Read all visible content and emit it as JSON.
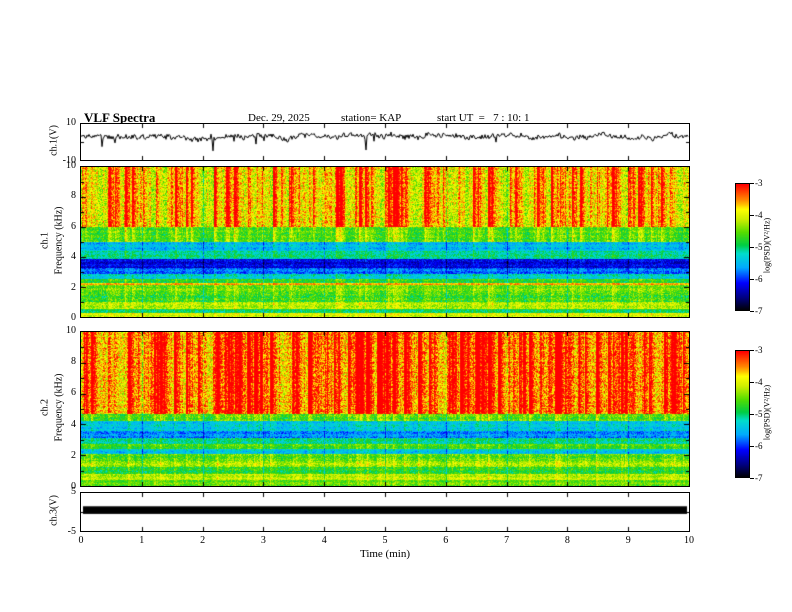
{
  "header": {
    "title": "VLF Spectra",
    "date": "Dec. 29, 2025",
    "station": "station= KAP",
    "start_ut": "start UT  =   7 : 10: 1"
  },
  "axes": {
    "x": {
      "label": "Time (min)",
      "ticks": [
        0,
        1,
        2,
        3,
        4,
        5,
        6,
        7,
        8,
        9,
        10
      ],
      "range": [
        0,
        10
      ]
    },
    "waveform_y": {
      "label": "ch.1(V)",
      "ticks": [
        10,
        -10
      ],
      "range": [
        -10,
        10
      ]
    },
    "spec1_y": {
      "label_line1": "ch.1",
      "label_line2": "Frequency (kHz)",
      "ticks": [
        10,
        8,
        6,
        4,
        2,
        0
      ],
      "range": [
        0,
        10
      ]
    },
    "spec2_y": {
      "label_line1": "ch.2",
      "label_line2": "Frequency (kHz)",
      "ticks": [
        10,
        8,
        6,
        4,
        2,
        0
      ],
      "range": [
        0,
        10
      ]
    },
    "ch3_y": {
      "label": "ch.3(V)",
      "ticks": [
        5,
        -5
      ],
      "range": [
        -5,
        5
      ]
    },
    "colorbar": {
      "label": "log(PSD)(V²/Hz)",
      "ticks": [
        -3,
        -4,
        -5,
        -6,
        -7
      ],
      "range": [
        -7,
        -3
      ]
    }
  },
  "chart_data": [
    {
      "type": "line",
      "panel": "ch1-waveform",
      "ylabel": "ch.1(V)",
      "ylim": [
        -10,
        10
      ],
      "xlim": [
        0,
        10
      ],
      "mean_level": 3,
      "noise_amplitude": 2.4,
      "spike_depth": -6,
      "color": "#000000",
      "description": "dense noisy voltage trace hovering near +3 V with occasional downward spikes"
    },
    {
      "type": "heatmap",
      "panel": "ch1-spectrogram",
      "ylabel": "Frequency (kHz)",
      "ylim": [
        0,
        10
      ],
      "xlim": [
        0,
        10
      ],
      "clim": [
        -7,
        -3
      ],
      "colormap": "rainbow",
      "bands": [
        {
          "f": [
            6.0,
            10.01
          ],
          "level": -4.3,
          "noise": 0.5,
          "streak": 1.6
        },
        {
          "f": [
            5.0,
            6.0
          ],
          "level": -4.8,
          "noise": 0.35,
          "streak": 0.7
        },
        {
          "f": [
            4.4,
            5.0
          ],
          "level": -5.6,
          "noise": 0.3,
          "streak": 0.3
        },
        {
          "f": [
            3.9,
            4.4
          ],
          "level": -5.2,
          "noise": 0.3,
          "streak": 0.3
        },
        {
          "f": [
            3.3,
            3.9
          ],
          "level": -6.3,
          "noise": 0.3,
          "streak": 0.15
        },
        {
          "f": [
            2.9,
            3.3
          ],
          "level": -5.9,
          "noise": 0.3,
          "streak": 0.2
        },
        {
          "f": [
            2.55,
            2.9
          ],
          "level": -5.4,
          "noise": 0.3,
          "streak": 0.3
        },
        {
          "f": [
            2.3,
            2.55
          ],
          "level": -4.9,
          "noise": 0.3,
          "streak": 0.4
        },
        {
          "f": [
            2.15,
            2.3
          ],
          "level": -3.7,
          "noise": 0.25,
          "streak": 0.2
        },
        {
          "f": [
            1.6,
            2.15
          ],
          "level": -4.6,
          "noise": 0.35,
          "streak": 0.4
        },
        {
          "f": [
            1.0,
            1.6
          ],
          "level": -4.8,
          "noise": 0.4,
          "streak": 0.4
        },
        {
          "f": [
            0.55,
            1.0
          ],
          "level": -4.3,
          "noise": 0.35,
          "streak": 0.3
        },
        {
          "f": [
            0.25,
            0.55
          ],
          "level": -5.0,
          "noise": 0.3,
          "streak": 0.2
        },
        {
          "f": [
            0.0,
            0.25
          ],
          "level": -4.1,
          "noise": 0.3,
          "streak": 0.2
        }
      ]
    },
    {
      "type": "heatmap",
      "panel": "ch2-spectrogram",
      "ylabel": "Frequency (kHz)",
      "ylim": [
        0,
        10
      ],
      "xlim": [
        0,
        10
      ],
      "clim": [
        -7,
        -3
      ],
      "colormap": "rainbow",
      "bands": [
        {
          "f": [
            4.7,
            10.01
          ],
          "level": -4.0,
          "noise": 0.55,
          "streak": 1.8
        },
        {
          "f": [
            4.2,
            4.7
          ],
          "level": -4.8,
          "noise": 0.35,
          "streak": 0.6
        },
        {
          "f": [
            3.6,
            4.2
          ],
          "level": -5.5,
          "noise": 0.3,
          "streak": 0.3
        },
        {
          "f": [
            3.1,
            3.6
          ],
          "level": -5.8,
          "noise": 0.3,
          "streak": 0.2
        },
        {
          "f": [
            2.75,
            3.1
          ],
          "level": -5.2,
          "noise": 0.3,
          "streak": 0.3
        },
        {
          "f": [
            2.4,
            2.75
          ],
          "level": -4.8,
          "noise": 0.3,
          "streak": 0.4
        },
        {
          "f": [
            2.1,
            2.4
          ],
          "level": -5.5,
          "noise": 0.3,
          "streak": 0.25
        },
        {
          "f": [
            1.65,
            2.1
          ],
          "level": -4.7,
          "noise": 0.35,
          "streak": 0.4
        },
        {
          "f": [
            1.25,
            1.65
          ],
          "level": -4.4,
          "noise": 0.35,
          "streak": 0.4
        },
        {
          "f": [
            0.8,
            1.25
          ],
          "level": -4.9,
          "noise": 0.35,
          "streak": 0.3
        },
        {
          "f": [
            0.4,
            0.8
          ],
          "level": -4.3,
          "noise": 0.3,
          "streak": 0.3
        },
        {
          "f": [
            0.0,
            0.4
          ],
          "level": -4.6,
          "noise": 0.3,
          "streak": 0.25
        }
      ]
    },
    {
      "type": "line",
      "panel": "ch3-signal",
      "ylabel": "ch.3(V)",
      "ylim": [
        -5,
        5
      ],
      "xlim": [
        0,
        10
      ],
      "bar_value_range": [
        -0.5,
        1.5
      ],
      "color": "#000000",
      "description": "flat saturated signal rendered as a solid black horizontal band"
    }
  ],
  "colors": {
    "background": "#ffffff",
    "axis": "#000000",
    "waveform": "#000000",
    "bar": "#000000",
    "colormap_stops": [
      [
        0.0,
        "#000000"
      ],
      [
        0.1,
        "#000080"
      ],
      [
        0.22,
        "#0000ff"
      ],
      [
        0.34,
        "#00aaff"
      ],
      [
        0.45,
        "#00ddcc"
      ],
      [
        0.52,
        "#00cc44"
      ],
      [
        0.62,
        "#55dd00"
      ],
      [
        0.72,
        "#ccee00"
      ],
      [
        0.8,
        "#ffff00"
      ],
      [
        0.88,
        "#ff8800"
      ],
      [
        1.0,
        "#ff0000"
      ]
    ]
  }
}
